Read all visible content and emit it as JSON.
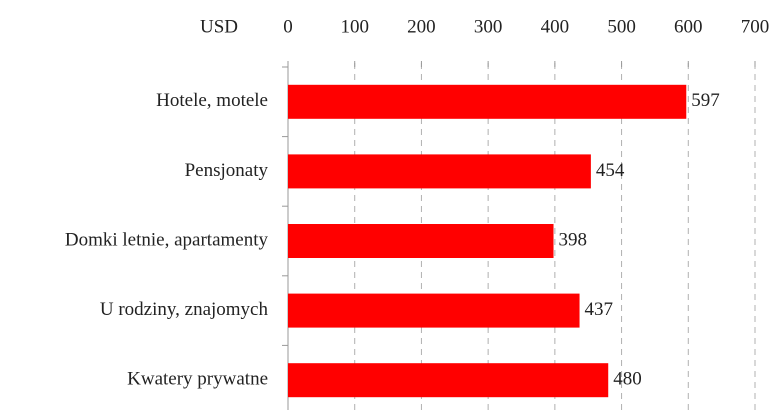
{
  "chart_data": {
    "type": "bar",
    "orientation": "horizontal",
    "x_label": "USD",
    "categories": [
      "Hotele, motele",
      "Pensjonaty",
      "Domki letnie, apartamenty",
      "U rodziny, znajomych",
      "Kwatery prywatne"
    ],
    "values": [
      597,
      454,
      398,
      437,
      480
    ],
    "color": "#ff0000",
    "xlim": [
      0,
      700
    ],
    "xticks": [
      0,
      100,
      200,
      300,
      400,
      500,
      600,
      700
    ],
    "grid": true
  }
}
